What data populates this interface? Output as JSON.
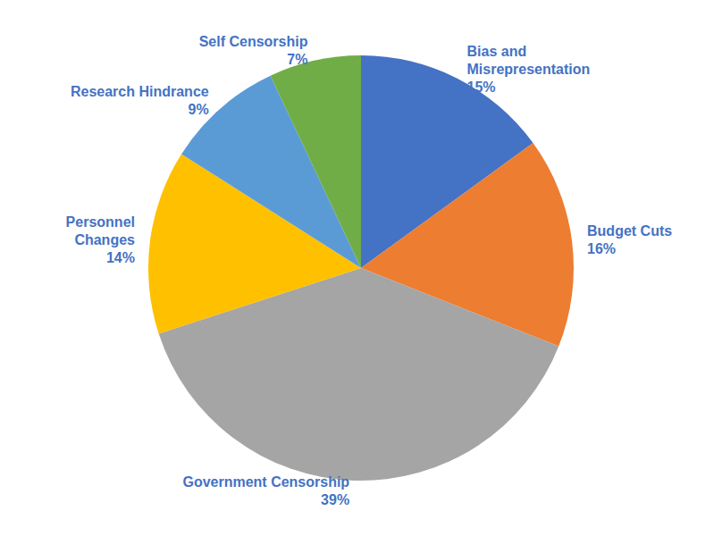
{
  "chart_data": {
    "type": "pie",
    "categories": [
      "Bias and\nMisrepresentation",
      "Budget Cuts",
      "Government Censorship",
      "Personnel\nChanges",
      "Research Hindrance",
      "Self Censorship"
    ],
    "values": [
      15,
      16,
      39,
      14,
      9,
      7
    ],
    "value_labels": [
      "15%",
      "16%",
      "39%",
      "14%",
      "9%",
      "7%"
    ],
    "colors": [
      "#4472c4",
      "#ed7d31",
      "#a5a5a5",
      "#ffc000",
      "#5b9bd5",
      "#70ad47"
    ],
    "data_labels": true
  }
}
